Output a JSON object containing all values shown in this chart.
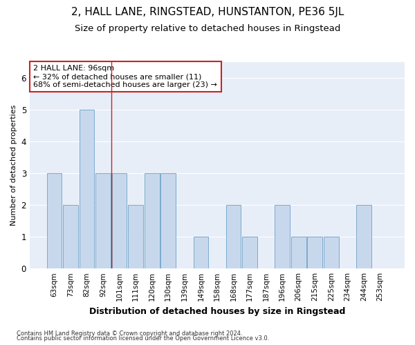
{
  "title1": "2, HALL LANE, RINGSTEAD, HUNSTANTON, PE36 5JL",
  "title2": "Size of property relative to detached houses in Ringstead",
  "xlabel": "Distribution of detached houses by size in Ringstead",
  "ylabel": "Number of detached properties",
  "categories": [
    "63sqm",
    "73sqm",
    "82sqm",
    "92sqm",
    "101sqm",
    "111sqm",
    "120sqm",
    "130sqm",
    "139sqm",
    "149sqm",
    "158sqm",
    "168sqm",
    "177sqm",
    "187sqm",
    "196sqm",
    "206sqm",
    "215sqm",
    "225sqm",
    "234sqm",
    "244sqm",
    "253sqm"
  ],
  "values": [
    3,
    2,
    5,
    3,
    3,
    2,
    3,
    3,
    0,
    1,
    0,
    2,
    1,
    0,
    2,
    1,
    1,
    1,
    0,
    2,
    0
  ],
  "bar_color": "#c8d8ec",
  "bar_edge_color": "#7aaace",
  "redline_index": 3.5,
  "annotation_title": "2 HALL LANE: 96sqm",
  "annotation_line1": "← 32% of detached houses are smaller (11)",
  "annotation_line2": "68% of semi-detached houses are larger (23) →",
  "ylim": [
    0,
    6.5
  ],
  "yticks": [
    0,
    1,
    2,
    3,
    4,
    5,
    6
  ],
  "footer1": "Contains HM Land Registry data © Crown copyright and database right 2024.",
  "footer2": "Contains public sector information licensed under the Open Government Licence v3.0.",
  "bg_color": "#e8eef8",
  "grid_color": "#ffffff",
  "title1_fontsize": 11,
  "title2_fontsize": 9.5,
  "xlabel_fontsize": 9,
  "ylabel_fontsize": 8,
  "annotation_box_color": "#ffffff",
  "annotation_box_edge": "#cc2222",
  "annotation_fontsize": 8,
  "tick_fontsize": 7.5,
  "footer_fontsize": 6,
  "redline_color": "#cc2222"
}
